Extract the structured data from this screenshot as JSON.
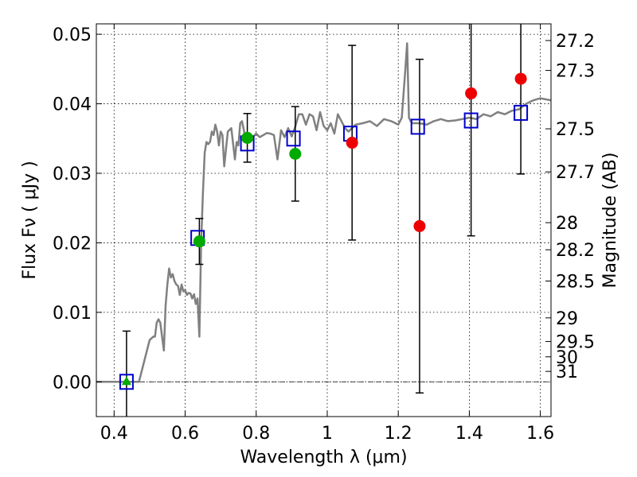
{
  "chart_data": {
    "type": "scatter",
    "xlabel": "Wavelength  λ (μm)",
    "ylabel": "Flux  Fν  ( μJy )",
    "y2label": "Magnitude (AB)",
    "xlim": [
      0.35,
      1.63
    ],
    "ylim": [
      -0.005,
      0.0515
    ],
    "grid": true,
    "x_ticks": [
      {
        "value": 0.4,
        "label": "0.4"
      },
      {
        "value": 0.6,
        "label": "0.6"
      },
      {
        "value": 0.8,
        "label": "0.8"
      },
      {
        "value": 1.0,
        "label": "1"
      },
      {
        "value": 1.2,
        "label": "1.2"
      },
      {
        "value": 1.4,
        "label": "1.4"
      },
      {
        "value": 1.6,
        "label": "1.6"
      }
    ],
    "y_ticks": [
      {
        "value": 0.0,
        "label": "0.00"
      },
      {
        "value": 0.01,
        "label": "0.01"
      },
      {
        "value": 0.02,
        "label": "0.02"
      },
      {
        "value": 0.03,
        "label": "0.03"
      },
      {
        "value": 0.04,
        "label": "0.04"
      },
      {
        "value": 0.05,
        "label": "0.05"
      }
    ],
    "mag_ticks": [
      {
        "flux": 0.0491,
        "label": "27.2"
      },
      {
        "flux": 0.0448,
        "label": "27.3"
      },
      {
        "flux": 0.0364,
        "label": "27.5"
      },
      {
        "flux": 0.0302,
        "label": "27.7"
      },
      {
        "flux": 0.0229,
        "label": "28"
      },
      {
        "flux": 0.019,
        "label": "28.2"
      },
      {
        "flux": 0.0145,
        "label": "28.5"
      },
      {
        "flux": 0.0092,
        "label": "29"
      },
      {
        "flux": 0.0058,
        "label": "29.5"
      },
      {
        "flux": 0.0036,
        "label": "30"
      },
      {
        "flux": 0.0015,
        "label": "31"
      }
    ],
    "model_spectrum": {
      "color": "#808080",
      "x": [
        0.35,
        0.47,
        0.485,
        0.5,
        0.51,
        0.515,
        0.52,
        0.525,
        0.53,
        0.54,
        0.545,
        0.55,
        0.555,
        0.56,
        0.565,
        0.57,
        0.575,
        0.58,
        0.585,
        0.59,
        0.595,
        0.6,
        0.605,
        0.61,
        0.615,
        0.62,
        0.625,
        0.63,
        0.635,
        0.64,
        0.645,
        0.65,
        0.655,
        0.66,
        0.665,
        0.67,
        0.675,
        0.68,
        0.685,
        0.69,
        0.695,
        0.7,
        0.705,
        0.71,
        0.72,
        0.73,
        0.74,
        0.745,
        0.75,
        0.755,
        0.76,
        0.77,
        0.78,
        0.79,
        0.8,
        0.81,
        0.82,
        0.83,
        0.84,
        0.85,
        0.86,
        0.87,
        0.88,
        0.89,
        0.9,
        0.91,
        0.92,
        0.93,
        0.94,
        0.95,
        0.96,
        0.97,
        0.98,
        0.99,
        1.0,
        1.01,
        1.02,
        1.03,
        1.04,
        1.05,
        1.06,
        1.08,
        1.1,
        1.12,
        1.14,
        1.16,
        1.18,
        1.2,
        1.21,
        1.22,
        1.225,
        1.23,
        1.235,
        1.24,
        1.26,
        1.28,
        1.3,
        1.32,
        1.34,
        1.36,
        1.38,
        1.4,
        1.42,
        1.44,
        1.46,
        1.48,
        1.5,
        1.52,
        1.54,
        1.56,
        1.58,
        1.6,
        1.63
      ],
      "y": [
        0.0,
        0.0,
        0.003,
        0.006,
        0.0065,
        0.0065,
        0.0085,
        0.009,
        0.0085,
        0.0045,
        0.011,
        0.014,
        0.0163,
        0.015,
        0.0155,
        0.0145,
        0.014,
        0.0138,
        0.0125,
        0.014,
        0.013,
        0.0132,
        0.0125,
        0.0128,
        0.0127,
        0.012,
        0.0126,
        0.0112,
        0.012,
        0.0065,
        0.02,
        0.027,
        0.033,
        0.0345,
        0.0342,
        0.0345,
        0.036,
        0.0355,
        0.037,
        0.036,
        0.034,
        0.036,
        0.0355,
        0.031,
        0.036,
        0.0365,
        0.032,
        0.0345,
        0.034,
        0.0372,
        0.0375,
        0.035,
        0.0345,
        0.0352,
        0.0357,
        0.0352,
        0.0355,
        0.0358,
        0.0357,
        0.0355,
        0.032,
        0.0362,
        0.0352,
        0.0365,
        0.0353,
        0.0367,
        0.0385,
        0.0385,
        0.037,
        0.0385,
        0.0382,
        0.0362,
        0.0388,
        0.0368,
        0.0362,
        0.0372,
        0.0357,
        0.0385,
        0.0375,
        0.0365,
        0.036,
        0.037,
        0.0372,
        0.0375,
        0.0368,
        0.0378,
        0.0375,
        0.037,
        0.038,
        0.045,
        0.0487,
        0.038,
        0.0375,
        0.0372,
        0.0372,
        0.037,
        0.0375,
        0.0378,
        0.0375,
        0.0376,
        0.0378,
        0.038,
        0.0378,
        0.0385,
        0.0382,
        0.0388,
        0.0385,
        0.039,
        0.0392,
        0.04,
        0.0405,
        0.0408,
        0.0405
      ]
    },
    "model_photometry": {
      "marker": "open-square",
      "color": "#0000cc",
      "points": [
        {
          "x": 0.435,
          "y": 0.0
        },
        {
          "x": 0.635,
          "y": 0.0207
        },
        {
          "x": 0.775,
          "y": 0.0343
        },
        {
          "x": 0.905,
          "y": 0.035
        },
        {
          "x": 1.065,
          "y": 0.0357
        },
        {
          "x": 1.255,
          "y": 0.0367
        },
        {
          "x": 1.405,
          "y": 0.0376
        },
        {
          "x": 1.545,
          "y": 0.0387
        }
      ]
    },
    "observed_green": {
      "color": "#00aa00",
      "points": [
        {
          "x": 0.435,
          "y": 0.0,
          "err": 0.0073,
          "marker": "triangle"
        },
        {
          "x": 0.64,
          "y": 0.0202,
          "err": 0.0033,
          "marker": "circle"
        },
        {
          "x": 0.775,
          "y": 0.0351,
          "err": 0.0035,
          "marker": "circle"
        },
        {
          "x": 0.91,
          "y": 0.0328,
          "err": 0.0068,
          "marker": "circle"
        }
      ]
    },
    "observed_red": {
      "color": "#ee0000",
      "points": [
        {
          "x": 1.07,
          "y": 0.0344,
          "err": 0.014,
          "marker": "circle"
        },
        {
          "x": 1.26,
          "y": 0.0224,
          "err": 0.024,
          "marker": "circle"
        },
        {
          "x": 1.405,
          "y": 0.0415,
          "err": 0.0205,
          "marker": "circle"
        },
        {
          "x": 1.545,
          "y": 0.0436,
          "err": 0.0137,
          "marker": "circle"
        }
      ]
    }
  }
}
